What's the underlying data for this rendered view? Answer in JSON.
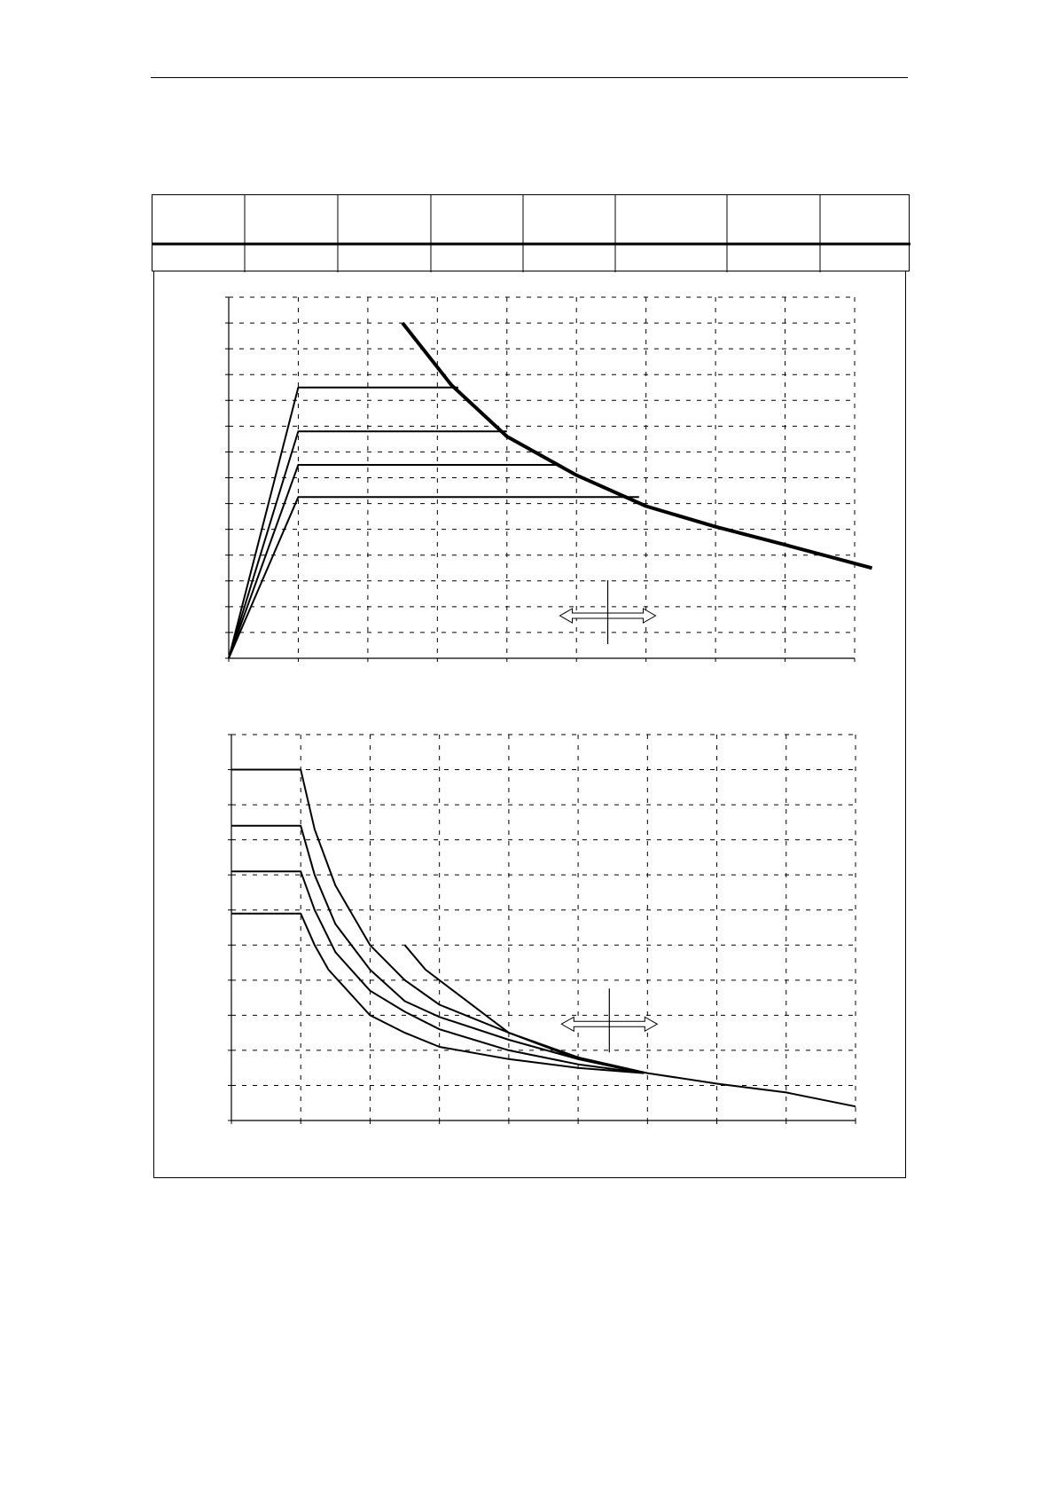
{
  "document": {
    "header_rule": true,
    "spec_table": {
      "columns": 8,
      "header_cells": [
        "",
        "",
        "",
        "",
        "",
        "",
        "",
        ""
      ],
      "value_cells": [
        "",
        "",
        "",
        "",
        "",
        "",
        "",
        ""
      ]
    }
  },
  "chart_data": [
    {
      "type": "line",
      "grid": true,
      "x_divisions": 9,
      "y_divisions": 14,
      "xlim": [
        0,
        9
      ],
      "ylim": [
        0,
        14
      ],
      "series": [
        {
          "style": "thick",
          "x": [
            2.5,
            3.2,
            4,
            5,
            6,
            7,
            8,
            9.25
          ],
          "y": [
            13,
            10.6,
            8.6,
            7.1,
            5.9,
            5.1,
            4.4,
            3.5
          ]
        },
        {
          "style": "thin",
          "x": [
            0,
            1,
            3.3
          ],
          "y": [
            0,
            10.5,
            10.5
          ]
        },
        {
          "style": "thin",
          "x": [
            0,
            1,
            4.0
          ],
          "y": [
            0,
            8.8,
            8.8
          ]
        },
        {
          "style": "thin",
          "x": [
            0,
            1,
            4.75
          ],
          "y": [
            0,
            7.5,
            7.5
          ]
        },
        {
          "style": "thin",
          "x": [
            0,
            1,
            5.9
          ],
          "y": [
            0,
            6.25,
            6.25
          ]
        }
      ],
      "annotations": [
        {
          "kind": "double-arrow",
          "x_center": 5.45,
          "y": 1.65
        }
      ]
    },
    {
      "type": "line",
      "grid": true,
      "x_divisions": 9,
      "y_divisions": 11,
      "xlim": [
        0,
        9
      ],
      "ylim": [
        0,
        11
      ],
      "series": [
        {
          "style": "thin",
          "x": [
            0,
            1,
            1.2,
            1.5,
            2,
            2.5,
            3,
            4,
            5,
            6,
            7,
            8,
            9
          ],
          "y": [
            10,
            10,
            8.3,
            6.7,
            5.0,
            4.0,
            3.3,
            2.5,
            1.8,
            1.35,
            1.05,
            0.8,
            0.4
          ]
        },
        {
          "style": "thin",
          "x": [
            0,
            1,
            1.2,
            1.5,
            2,
            2.5,
            3,
            4,
            5,
            5.95
          ],
          "y": [
            8.4,
            8.4,
            7.0,
            5.6,
            4.3,
            3.4,
            2.95,
            2.3,
            1.75,
            1.35
          ]
        },
        {
          "style": "thin",
          "x": [
            0,
            1,
            1.2,
            1.5,
            2,
            2.5,
            3,
            4,
            5,
            5.95
          ],
          "y": [
            7.1,
            7.1,
            6.0,
            4.8,
            3.7,
            3.1,
            2.6,
            2.0,
            1.6,
            1.35
          ]
        },
        {
          "style": "thin",
          "x": [
            0,
            1,
            1.2,
            1.4,
            2,
            2.5,
            3,
            4,
            5,
            5.95
          ],
          "y": [
            5.9,
            5.9,
            5.0,
            4.3,
            3.0,
            2.5,
            2.1,
            1.75,
            1.5,
            1.35
          ]
        },
        {
          "style": "thin",
          "x": [
            2.5,
            2.8,
            3.2,
            4,
            5,
            5.95
          ],
          "y": [
            5.0,
            4.3,
            3.7,
            2.5,
            1.75,
            1.35
          ]
        }
      ],
      "annotations": [
        {
          "kind": "double-arrow",
          "x_center": 5.45,
          "y": 2.75
        }
      ]
    }
  ]
}
